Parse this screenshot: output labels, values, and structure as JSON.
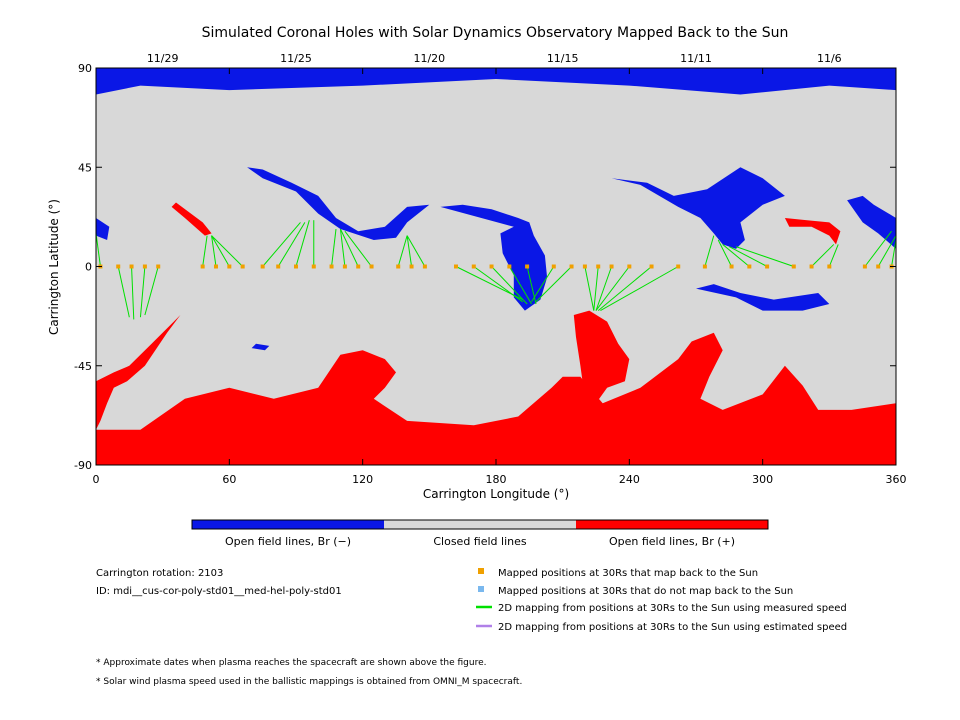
{
  "chart_data": {
    "type": "heatmap",
    "title": "Simulated Coronal Holes with Solar Dynamics Observatory Mapped Back to the Sun",
    "xlabel": "Carrington Longitude (°)",
    "ylabel": "Carrington Latitude (°)",
    "xlim": [
      0,
      360
    ],
    "ylim": [
      -90,
      90
    ],
    "x_ticks": [
      "0",
      "60",
      "120",
      "180",
      "240",
      "300",
      "360"
    ],
    "y_ticks": [
      "90",
      "45",
      "0",
      "-45",
      "-90"
    ],
    "y_tick_values": [
      90,
      45,
      0,
      -45,
      -90
    ],
    "x_tick_values": [
      0,
      60,
      120,
      180,
      240,
      300,
      360
    ],
    "top_dates": [
      {
        "label": "11/29",
        "lon": 30
      },
      {
        "label": "11/25",
        "lon": 90
      },
      {
        "label": "11/20",
        "lon": 150
      },
      {
        "label": "11/15",
        "lon": 210
      },
      {
        "label": "11/11",
        "lon": 270
      },
      {
        "label": "11/6",
        "lon": 330
      }
    ],
    "colors": {
      "open_negative": "#0a17e6",
      "closed": "#d8d8d8",
      "open_positive": "#ff0000",
      "mapped_back": "#f0a000",
      "not_mapped": "#7ab8ee",
      "measured_speed": "#00e000",
      "estimated_speed": "#b080e8"
    },
    "regions": {
      "open_negative": [
        [
          [
            0,
            90
          ],
          [
            360,
            90
          ],
          [
            360,
            80
          ],
          [
            330,
            82
          ],
          [
            290,
            78
          ],
          [
            240,
            82
          ],
          [
            180,
            85
          ],
          [
            120,
            82
          ],
          [
            60,
            80
          ],
          [
            20,
            82
          ],
          [
            0,
            78
          ]
        ],
        [
          [
            0,
            22
          ],
          [
            6,
            18
          ],
          [
            5,
            12
          ],
          [
            0,
            14
          ]
        ],
        [
          [
            68,
            45
          ],
          [
            75,
            40
          ],
          [
            90,
            34
          ],
          [
            100,
            24
          ],
          [
            110,
            17
          ],
          [
            125,
            12
          ],
          [
            135,
            13
          ],
          [
            140,
            20
          ],
          [
            150,
            28
          ],
          [
            140,
            27
          ],
          [
            130,
            18
          ],
          [
            118,
            16
          ],
          [
            108,
            22
          ],
          [
            100,
            32
          ],
          [
            88,
            38
          ],
          [
            75,
            44
          ]
        ],
        [
          [
            155,
            27
          ],
          [
            165,
            28
          ],
          [
            178,
            26
          ],
          [
            190,
            22
          ],
          [
            195,
            20
          ],
          [
            197,
            14
          ],
          [
            202,
            5
          ],
          [
            203,
            -5
          ],
          [
            200,
            -15
          ],
          [
            193,
            -20
          ],
          [
            188,
            -14
          ],
          [
            188,
            -4
          ],
          [
            183,
            6
          ],
          [
            182,
            15
          ],
          [
            188,
            18
          ]
        ],
        [
          [
            232,
            40
          ],
          [
            245,
            37
          ],
          [
            262,
            27
          ],
          [
            272,
            22
          ],
          [
            278,
            15
          ],
          [
            282,
            10
          ],
          [
            288,
            8
          ],
          [
            292,
            12
          ],
          [
            290,
            20
          ],
          [
            300,
            28
          ],
          [
            310,
            32
          ],
          [
            300,
            40
          ],
          [
            290,
            45
          ],
          [
            275,
            35
          ],
          [
            260,
            32
          ],
          [
            248,
            38
          ]
        ],
        [
          [
            338,
            30
          ],
          [
            345,
            32
          ],
          [
            350,
            28
          ],
          [
            360,
            22
          ],
          [
            360,
            8
          ],
          [
            352,
            15
          ],
          [
            345,
            20
          ]
        ],
        [
          [
            270,
            -10
          ],
          [
            288,
            -14
          ],
          [
            300,
            -20
          ],
          [
            318,
            -20
          ],
          [
            330,
            -17
          ],
          [
            325,
            -12
          ],
          [
            305,
            -15
          ],
          [
            290,
            -12
          ],
          [
            278,
            -8
          ]
        ],
        [
          [
            72,
            -35
          ],
          [
            78,
            -36
          ],
          [
            76,
            -38
          ],
          [
            70,
            -37
          ]
        ]
      ],
      "open_positive": [
        [
          [
            36,
            29
          ],
          [
            48,
            20
          ],
          [
            52,
            15
          ],
          [
            49,
            14
          ],
          [
            40,
            22
          ],
          [
            34,
            27
          ]
        ],
        [
          [
            310,
            22
          ],
          [
            320,
            21
          ],
          [
            330,
            20
          ],
          [
            335,
            16
          ],
          [
            333,
            10
          ],
          [
            330,
            14
          ],
          [
            322,
            18
          ],
          [
            312,
            18
          ]
        ],
        [
          [
            0,
            -52
          ],
          [
            8,
            -48
          ],
          [
            15,
            -45
          ],
          [
            25,
            -35
          ],
          [
            35,
            -25
          ],
          [
            38,
            -22
          ],
          [
            32,
            -30
          ],
          [
            22,
            -45
          ],
          [
            14,
            -52
          ],
          [
            8,
            -55
          ],
          [
            5,
            -62
          ],
          [
            2,
            -70
          ],
          [
            0,
            -74
          ]
        ],
        [
          [
            215,
            -22
          ],
          [
            222,
            -20
          ],
          [
            230,
            -25
          ],
          [
            235,
            -35
          ],
          [
            240,
            -42
          ],
          [
            238,
            -52
          ],
          [
            230,
            -55
          ],
          [
            225,
            -62
          ],
          [
            220,
            -60
          ],
          [
            218,
            -45
          ],
          [
            216,
            -32
          ]
        ],
        [
          [
            0,
            -74
          ],
          [
            20,
            -74
          ],
          [
            40,
            -60
          ],
          [
            60,
            -55
          ],
          [
            80,
            -60
          ],
          [
            100,
            -55
          ],
          [
            110,
            -40
          ],
          [
            120,
            -38
          ],
          [
            130,
            -42
          ],
          [
            135,
            -48
          ],
          [
            130,
            -55
          ],
          [
            125,
            -60
          ],
          [
            140,
            -70
          ],
          [
            170,
            -72
          ],
          [
            190,
            -68
          ],
          [
            205,
            -55
          ],
          [
            210,
            -50
          ],
          [
            218,
            -50
          ],
          [
            222,
            -55
          ],
          [
            228,
            -62
          ],
          [
            245,
            -55
          ],
          [
            262,
            -42
          ],
          [
            268,
            -34
          ],
          [
            278,
            -30
          ],
          [
            282,
            -38
          ],
          [
            276,
            -50
          ],
          [
            272,
            -60
          ],
          [
            282,
            -65
          ],
          [
            300,
            -58
          ],
          [
            310,
            -45
          ],
          [
            318,
            -54
          ],
          [
            325,
            -65
          ],
          [
            340,
            -65
          ],
          [
            360,
            -62
          ],
          [
            360,
            -90
          ],
          [
            0,
            -90
          ]
        ]
      ]
    },
    "mapped_points": [
      {
        "lon": 2,
        "lat": 0
      },
      {
        "lon": 10,
        "lat": 0
      },
      {
        "lon": 16,
        "lat": 0
      },
      {
        "lon": 22,
        "lat": 0
      },
      {
        "lon": 28,
        "lat": 0
      },
      {
        "lon": 48,
        "lat": 0
      },
      {
        "lon": 54,
        "lat": 0
      },
      {
        "lon": 60,
        "lat": 0
      },
      {
        "lon": 66,
        "lat": 0
      },
      {
        "lon": 75,
        "lat": 0
      },
      {
        "lon": 82,
        "lat": 0
      },
      {
        "lon": 90,
        "lat": 0
      },
      {
        "lon": 98,
        "lat": 0
      },
      {
        "lon": 106,
        "lat": 0
      },
      {
        "lon": 112,
        "lat": 0
      },
      {
        "lon": 118,
        "lat": 0
      },
      {
        "lon": 124,
        "lat": 0
      },
      {
        "lon": 136,
        "lat": 0
      },
      {
        "lon": 142,
        "lat": 0
      },
      {
        "lon": 148,
        "lat": 0
      },
      {
        "lon": 162,
        "lat": 0
      },
      {
        "lon": 170,
        "lat": 0
      },
      {
        "lon": 178,
        "lat": 0
      },
      {
        "lon": 186,
        "lat": 0
      },
      {
        "lon": 194,
        "lat": 0
      },
      {
        "lon": 206,
        "lat": 0
      },
      {
        "lon": 214,
        "lat": 0
      },
      {
        "lon": 220,
        "lat": 0
      },
      {
        "lon": 226,
        "lat": 0
      },
      {
        "lon": 232,
        "lat": 0
      },
      {
        "lon": 240,
        "lat": 0
      },
      {
        "lon": 250,
        "lat": 0
      },
      {
        "lon": 262,
        "lat": 0
      },
      {
        "lon": 274,
        "lat": 0
      },
      {
        "lon": 286,
        "lat": 0
      },
      {
        "lon": 294,
        "lat": 0
      },
      {
        "lon": 302,
        "lat": 0
      },
      {
        "lon": 314,
        "lat": 0
      },
      {
        "lon": 322,
        "lat": 0
      },
      {
        "lon": 330,
        "lat": 0
      },
      {
        "lon": 346,
        "lat": 0
      },
      {
        "lon": 352,
        "lat": 0
      },
      {
        "lon": 358,
        "lat": 0
      }
    ],
    "mapping_lines": [
      {
        "from": [
          2,
          0
        ],
        "to": [
          0,
          15
        ]
      },
      {
        "from": [
          10,
          0
        ],
        "to": [
          15,
          -23
        ]
      },
      {
        "from": [
          16,
          0
        ],
        "to": [
          17,
          -24
        ]
      },
      {
        "from": [
          22,
          0
        ],
        "to": [
          20,
          -23
        ]
      },
      {
        "from": [
          28,
          0
        ],
        "to": [
          22,
          -22
        ]
      },
      {
        "from": [
          48,
          0
        ],
        "to": [
          50,
          14
        ]
      },
      {
        "from": [
          54,
          0
        ],
        "to": [
          52,
          14
        ]
      },
      {
        "from": [
          60,
          0
        ],
        "to": [
          52,
          14
        ]
      },
      {
        "from": [
          66,
          0
        ],
        "to": [
          52,
          14
        ]
      },
      {
        "from": [
          75,
          0
        ],
        "to": [
          92,
          20
        ]
      },
      {
        "from": [
          82,
          0
        ],
        "to": [
          94,
          20
        ]
      },
      {
        "from": [
          90,
          0
        ],
        "to": [
          96,
          21
        ]
      },
      {
        "from": [
          98,
          0
        ],
        "to": [
          98,
          21
        ]
      },
      {
        "from": [
          106,
          0
        ],
        "to": [
          108,
          17
        ]
      },
      {
        "from": [
          112,
          0
        ],
        "to": [
          110,
          17
        ]
      },
      {
        "from": [
          118,
          0
        ],
        "to": [
          110,
          17
        ]
      },
      {
        "from": [
          124,
          0
        ],
        "to": [
          112,
          16
        ]
      },
      {
        "from": [
          136,
          0
        ],
        "to": [
          140,
          14
        ]
      },
      {
        "from": [
          142,
          0
        ],
        "to": [
          140,
          14
        ]
      },
      {
        "from": [
          148,
          0
        ],
        "to": [
          140,
          14
        ]
      },
      {
        "from": [
          162,
          0
        ],
        "to": [
          192,
          -15
        ]
      },
      {
        "from": [
          170,
          0
        ],
        "to": [
          192,
          -16
        ]
      },
      {
        "from": [
          178,
          0
        ],
        "to": [
          194,
          -17
        ]
      },
      {
        "from": [
          186,
          0
        ],
        "to": [
          196,
          -17
        ]
      },
      {
        "from": [
          194,
          0
        ],
        "to": [
          198,
          -17
        ]
      },
      {
        "from": [
          206,
          0
        ],
        "to": [
          196,
          -16
        ]
      },
      {
        "from": [
          214,
          0
        ],
        "to": [
          198,
          -16
        ]
      },
      {
        "from": [
          220,
          0
        ],
        "to": [
          224,
          -20
        ]
      },
      {
        "from": [
          226,
          0
        ],
        "to": [
          224,
          -20
        ]
      },
      {
        "from": [
          232,
          0
        ],
        "to": [
          225,
          -20
        ]
      },
      {
        "from": [
          240,
          0
        ],
        "to": [
          225,
          -20
        ]
      },
      {
        "from": [
          250,
          0
        ],
        "to": [
          226,
          -20
        ]
      },
      {
        "from": [
          262,
          0
        ],
        "to": [
          227,
          -20
        ]
      },
      {
        "from": [
          274,
          0
        ],
        "to": [
          278,
          14
        ]
      },
      {
        "from": [
          286,
          0
        ],
        "to": [
          280,
          12
        ]
      },
      {
        "from": [
          294,
          0
        ],
        "to": [
          282,
          10
        ]
      },
      {
        "from": [
          302,
          0
        ],
        "to": [
          285,
          9
        ]
      },
      {
        "from": [
          314,
          0
        ],
        "to": [
          288,
          9
        ]
      },
      {
        "from": [
          322,
          0
        ],
        "to": [
          332,
          10
        ]
      },
      {
        "from": [
          330,
          0
        ],
        "to": [
          334,
          10
        ]
      },
      {
        "from": [
          346,
          0
        ],
        "to": [
          358,
          16
        ]
      },
      {
        "from": [
          352,
          0
        ],
        "to": [
          360,
          14
        ]
      },
      {
        "from": [
          358,
          0
        ],
        "to": [
          360,
          12
        ]
      }
    ]
  },
  "colorbar": {
    "labels": [
      "Open field lines, Br (−)",
      "Closed field lines",
      "Open field lines, Br (+)"
    ]
  },
  "info": {
    "rotation": "Carrington rotation: 2103",
    "id": "ID: mdi__cus-cor-poly-std01__med-hel-poly-std01"
  },
  "legend": [
    {
      "label": "Mapped positions at 30Rs that map back to the Sun",
      "kind": "square",
      "color": "#f0a000"
    },
    {
      "label": "Mapped positions at 30Rs that do not map back to the Sun",
      "kind": "square",
      "color": "#7ab8ee"
    },
    {
      "label": "2D mapping from positions at 30Rs to the Sun using measured speed",
      "kind": "line",
      "color": "#00e000"
    },
    {
      "label": "2D mapping from positions at 30Rs to the Sun using estimated speed",
      "kind": "line",
      "color": "#b080e8"
    }
  ],
  "footnotes": [
    "* Approximate dates when plasma reaches the spacecraft are shown above the figure.",
    "* Solar wind plasma speed used in the ballistic mappings is obtained from OMNI_M spacecraft."
  ]
}
